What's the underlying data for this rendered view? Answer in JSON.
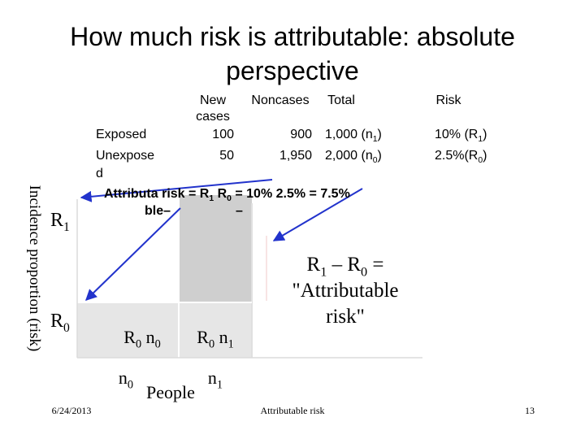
{
  "title": [
    "How much risk is attributable: absolute",
    "perspective"
  ],
  "table": {
    "header": [
      [
        "New",
        "cases"
      ],
      [
        "Noncases"
      ],
      [
        "Total"
      ],
      [
        "Risk"
      ]
    ],
    "rows": [
      {
        "label": [
          "Exposed"
        ],
        "cells": [
          [
            {
              "text": "100"
            }
          ],
          [
            {
              "text": "900"
            }
          ],
          [
            {
              "text": "1,000  (n"
            },
            {
              "sub": "1"
            },
            {
              "text": ")"
            }
          ],
          [
            {
              "text": "10% (R"
            },
            {
              "sub": "1"
            },
            {
              "text": ")"
            }
          ]
        ]
      },
      {
        "label": [
          "Unexpose",
          "d"
        ],
        "cells": [
          [
            {
              "text": "50"
            }
          ],
          [
            {
              "text": "1,950"
            }
          ],
          [
            {
              "text": "2,000  (n"
            },
            {
              "sub": "0"
            },
            {
              "text": ")"
            }
          ],
          [
            {
              "text": "2.5%(R"
            },
            {
              "sub": "0"
            },
            {
              "text": ")"
            }
          ]
        ]
      }
    ]
  },
  "attributable": {
    "line1": [
      {
        "text": "Attributa risk = R"
      },
      {
        "sub": "1"
      },
      {
        "text": " R"
      },
      {
        "sub": "0"
      },
      {
        "text": "  =  10%  2.5%    =  7.5%"
      }
    ],
    "line2": [
      "ble–",
      "–"
    ]
  },
  "diagram": {
    "y_axis_label": "Incidence proportion (risk)",
    "r1": [
      {
        "text": "R"
      },
      {
        "sub": "1"
      }
    ],
    "r0": [
      {
        "text": "R"
      },
      {
        "sub": "0"
      }
    ],
    "box_n0": [
      {
        "text": "R"
      },
      {
        "sub": "0"
      },
      {
        "text": " n"
      },
      {
        "sub": "0"
      }
    ],
    "box_n1": [
      {
        "text": "R"
      },
      {
        "sub": "0"
      },
      {
        "text": " n"
      },
      {
        "sub": "1"
      }
    ],
    "annotation": [
      [
        {
          "text": "R"
        },
        {
          "sub": "1"
        },
        {
          "text": " – R"
        },
        {
          "sub": "0"
        },
        {
          "text": " ="
        }
      ],
      [
        {
          "text": "\"Attributable"
        }
      ],
      [
        {
          "text": "risk\""
        }
      ]
    ],
    "x_n0": [
      {
        "text": "n"
      },
      {
        "sub": "0"
      }
    ],
    "x_n1": [
      {
        "text": "n"
      },
      {
        "sub": "1"
      }
    ],
    "x_label": "People"
  },
  "footer": {
    "date": "6/24/2013",
    "center": "Attributable risk",
    "page": "13"
  }
}
